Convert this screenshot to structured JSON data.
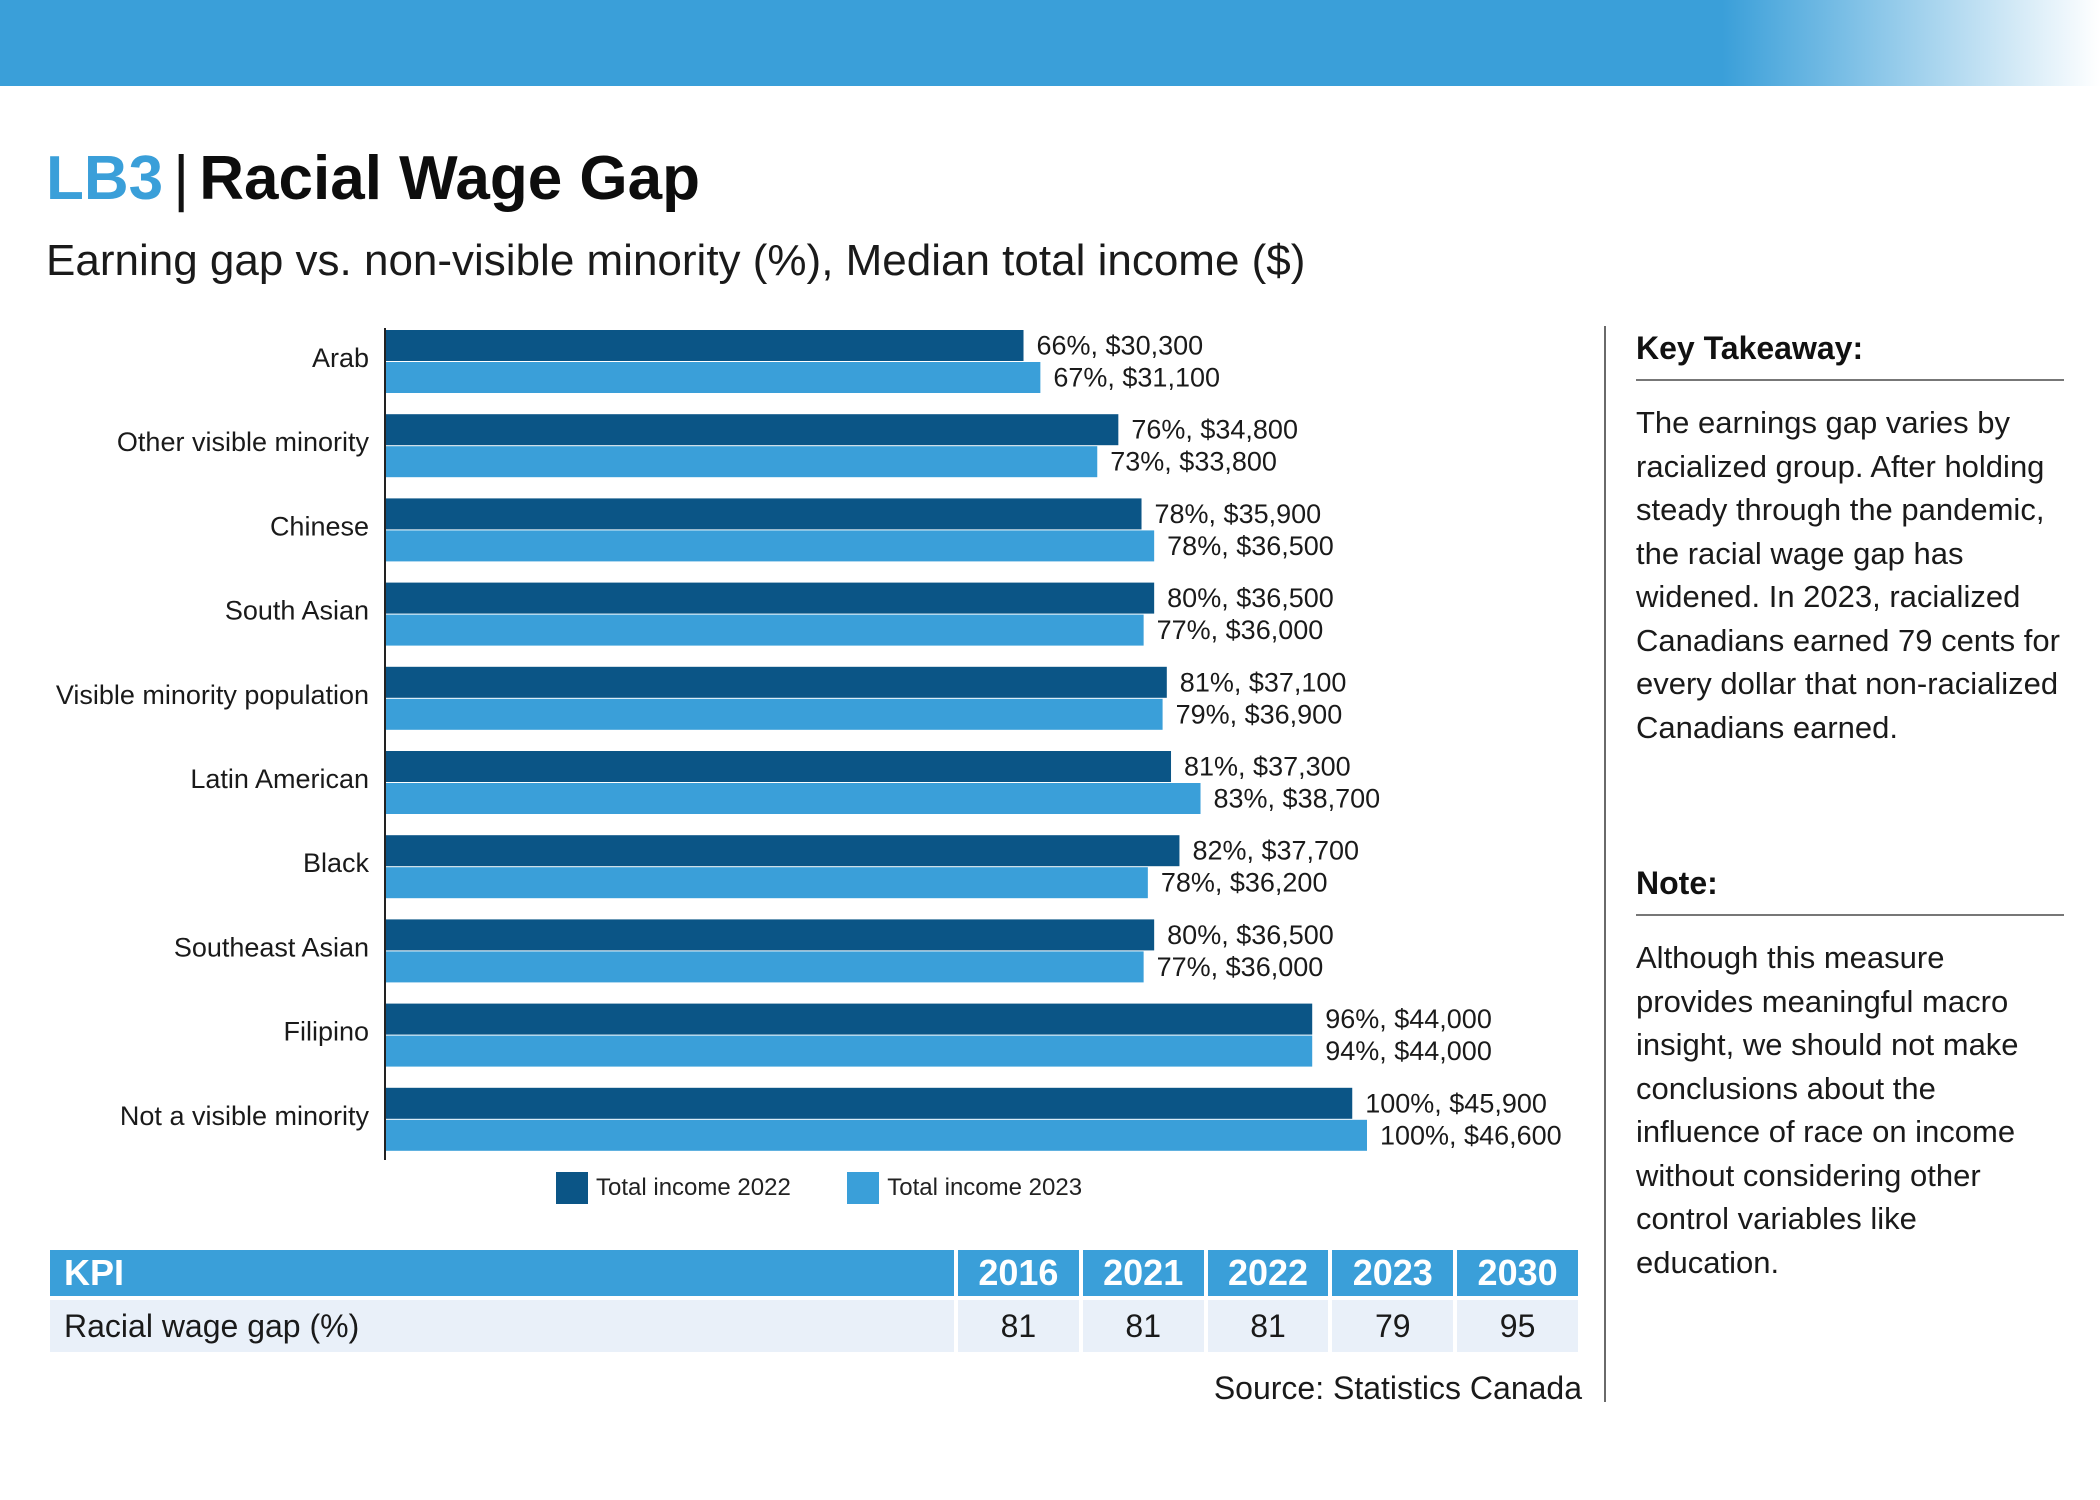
{
  "header": {
    "code": "LB3",
    "separator": "|",
    "title": "Racial Wage Gap",
    "subtitle": "Earning gap vs. non-visible minority (%), Median total income ($)"
  },
  "colors": {
    "band": "#3a9fd9",
    "series_2022": "#0b5586",
    "series_2023": "#3a9fd9",
    "table_header": "#3a9fd9",
    "table_row": "#e9f0f9"
  },
  "chart_data": {
    "type": "bar",
    "orientation": "horizontal",
    "categories": [
      "Arab",
      "Other visible minority",
      "Chinese",
      "South Asian",
      "Visible minority population",
      "Latin American",
      "Black",
      "Southeast Asian",
      "Filipino",
      "Not a visible minority"
    ],
    "series": [
      {
        "name": "Total income 2022",
        "values": [
          30300,
          34800,
          35900,
          36500,
          37100,
          37300,
          37700,
          36500,
          44000,
          45900
        ],
        "labels": [
          "66%, $30,300",
          "76%, $34,800",
          "78%, $35,900",
          "80%, $36,500",
          "81%, $37,100",
          "81%, $37,300",
          "82%, $37,700",
          "80%, $36,500",
          "96%, $44,000",
          "100%, $45,900"
        ]
      },
      {
        "name": "Total income 2023",
        "values": [
          31100,
          33800,
          36500,
          36000,
          36900,
          38700,
          36200,
          36000,
          44000,
          46600
        ],
        "labels": [
          "67%, $31,100",
          "73%, $33,800",
          "78%, $36,500",
          "77%, $36,000",
          "79%, $36,900",
          "83%, $38,700",
          "78%, $36,200",
          "77%, $36,000",
          "94%, $44,000",
          "100%, $46,600"
        ]
      }
    ],
    "xlim": [
      0,
      46600
    ],
    "title": "Earning gap vs. non-visible minority (%), Median total income ($)",
    "legend_position": "bottom"
  },
  "kpi_table": {
    "header": [
      "KPI",
      "2016",
      "2021",
      "2022",
      "2023",
      "2030"
    ],
    "row": [
      "Racial wage gap (%)",
      "81",
      "81",
      "81",
      "79",
      "95"
    ]
  },
  "source": "Source: Statistics Canada",
  "takeaway": {
    "heading": "Key Takeaway:",
    "text": "The earnings gap varies by racialized group. After holding steady through the pandemic, the racial wage gap has widened. In 2023, racialized Canadians earned 79 cents for every dollar that non-racialized Canadians earned."
  },
  "note": {
    "heading": "Note:",
    "text": "Although this measure provides meaningful macro insight, we should not make conclusions about the influence of race on income without considering other control variables like education."
  }
}
